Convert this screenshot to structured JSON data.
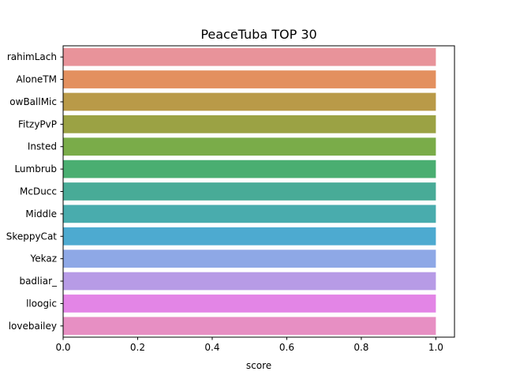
{
  "chart_data": {
    "type": "bar",
    "orientation": "horizontal",
    "title": "PeaceTuba TOP 30",
    "xlabel": "score",
    "ylabel": "",
    "xlim": [
      0,
      1.05
    ],
    "xticks": [
      "0.0",
      "0.2",
      "0.4",
      "0.6",
      "0.8",
      "1.0"
    ],
    "categories": [
      "rahimLach",
      "AloneTM",
      "owBallMic",
      "FitzyPvP",
      "Insted",
      "Lumbrub",
      "McDucc",
      "Middle",
      "SkeppyCat",
      "Yekaz",
      "badliar_",
      "lloogic",
      "lovebailey"
    ],
    "values": [
      1,
      1,
      1,
      1,
      1,
      1,
      1,
      1,
      1,
      1,
      1,
      1,
      1
    ],
    "colors": [
      "#e8939a",
      "#e3905f",
      "#b99a48",
      "#9ba244",
      "#7aac49",
      "#4aae71",
      "#48ab97",
      "#49acad",
      "#4daad0",
      "#8ea8e6",
      "#b79be6",
      "#e385e6",
      "#e78fc3"
    ],
    "grid": false,
    "legend": "none"
  }
}
